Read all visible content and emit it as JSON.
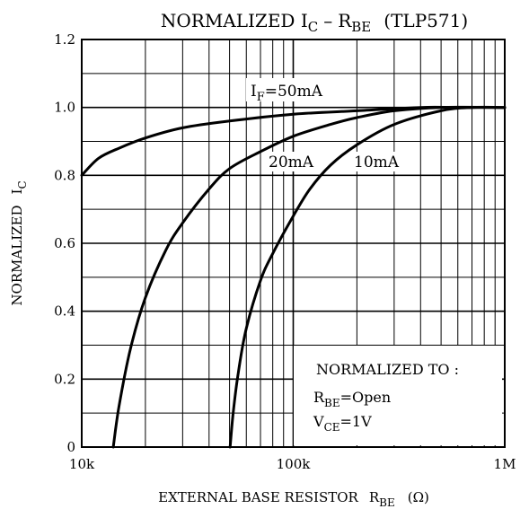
{
  "chart_data": {
    "type": "line",
    "title": {
      "prefix": "NORMALIZED I",
      "prefix_sub": "C",
      "dash": "–",
      "resistor": "R",
      "resistor_sub": "BE",
      "device": "(TLP571)"
    },
    "xlabel": {
      "text": "EXTERNAL BASE RESISTOR",
      "symbol": "R",
      "symbol_sub": "BE",
      "unit": "(Ω)"
    },
    "ylabel": {
      "text": "NORMALIZED",
      "symbol": "I",
      "symbol_sub": "C"
    },
    "x_scale": "log",
    "x_unit": "ohm",
    "xlim": [
      10000,
      1000000
    ],
    "ylim": [
      0,
      1.2
    ],
    "x_ticks": [
      {
        "value": 10000,
        "label": "10k"
      },
      {
        "value": 100000,
        "label": "100k"
      },
      {
        "value": 1000000,
        "label": "1M"
      }
    ],
    "y_ticks": [
      {
        "value": 0,
        "label": "0"
      },
      {
        "value": 0.2,
        "label": "0.2"
      },
      {
        "value": 0.4,
        "label": "0.4"
      },
      {
        "value": 0.6,
        "label": "0.6"
      },
      {
        "value": 0.8,
        "label": "0.8"
      },
      {
        "value": 1.0,
        "label": "1.0"
      },
      {
        "value": 1.2,
        "label": "1.2"
      }
    ],
    "grid": true,
    "series": [
      {
        "name": "50mA",
        "label_prefix": "I",
        "label_sub": "F",
        "label_value": "=50mA",
        "x": [
          10000,
          12000,
          15000,
          20000,
          30000,
          50000,
          100000,
          200000,
          400000,
          600000,
          1000000
        ],
        "y": [
          0.8,
          0.85,
          0.88,
          0.91,
          0.94,
          0.96,
          0.98,
          0.99,
          1.0,
          1.0,
          1.0
        ]
      },
      {
        "name": "20mA",
        "x": [
          14100,
          15000,
          17000,
          20000,
          25000,
          30000,
          40000,
          50000,
          70000,
          100000,
          150000,
          200000,
          300000,
          500000,
          1000000
        ],
        "y": [
          0.0,
          0.12,
          0.29,
          0.44,
          0.58,
          0.66,
          0.76,
          0.82,
          0.87,
          0.915,
          0.95,
          0.97,
          0.99,
          1.0,
          1.0
        ],
        "label": "20mA"
      },
      {
        "name": "10mA",
        "x": [
          50300,
          52000,
          55000,
          60000,
          70000,
          80000,
          100000,
          120000,
          150000,
          200000,
          300000,
          500000,
          700000,
          1000000
        ],
        "y": [
          0.0,
          0.1,
          0.22,
          0.35,
          0.49,
          0.57,
          0.68,
          0.76,
          0.83,
          0.89,
          0.95,
          0.99,
          1.0,
          1.0
        ],
        "label": "10mA"
      }
    ],
    "annotation": {
      "line1": "NORMALIZED TO :",
      "line2_prefix": "R",
      "line2_sub": "BE",
      "line2_value": "=Open",
      "line3_prefix": "V",
      "line3_sub": "CE",
      "line3_value": "=1V"
    }
  }
}
